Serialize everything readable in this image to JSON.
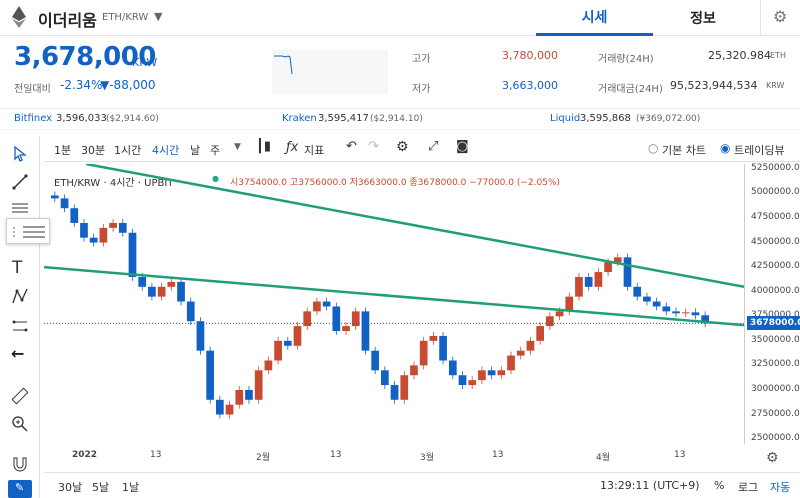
{
  "header": {
    "coin_name": "이더리움",
    "pair": "ETH/KRW",
    "tabs": [
      "시세",
      "정보"
    ]
  },
  "price": {
    "current": "3,678,000",
    "unit": "KRW",
    "change_label": "전일대비",
    "change_pct": "-2.34%",
    "change_abs": "▼-88,000",
    "high_label": "고가",
    "high": "3,780,000",
    "low_label": "저가",
    "low": "3,663,000",
    "volume_label": "거래량(24H)",
    "volume": "25,320.984",
    "volume_unit": "ETH",
    "amount_label": "거래대금(24H)",
    "amount": "95,523,944,534",
    "amount_unit": "KRW"
  },
  "exchanges": [
    {
      "name": "Bitfinex",
      "price": "3,596,033",
      "ref": "($2,914.60)"
    },
    {
      "name": "Kraken",
      "price": "3,595,417",
      "ref": "($2,914.10)"
    },
    {
      "name": "Liquid",
      "price": "3,595,868",
      "ref": "(¥369,072.00)"
    }
  ],
  "toolbar": {
    "intervals": [
      "1분",
      "30분",
      "1시간",
      "4시간",
      "날",
      "주"
    ],
    "indicator": "지표",
    "mode_basic": "기본 차트",
    "mode_tv": "트레이딩뷰"
  },
  "legend": {
    "symbol": "ETH/KRW · 4시간 · UPBIT",
    "ohlc": "시3754000.0 고3756000.0 저3663000.0 종3678000.0 −77000.0 (−2.05%)"
  },
  "chart_data": {
    "type": "candlestick",
    "last_price_label": "3678000.0",
    "y_ticks": [
      "5250000.0",
      "5000000.0",
      "4750000.0",
      "4500000.0",
      "4250000.0",
      "4000000.0",
      "3750000.0",
      "3500000.0",
      "3250000.0",
      "3000000.0",
      "2750000.0",
      "2500000.0"
    ],
    "ylim": [
      2450000,
      5300000
    ],
    "x_ticks": [
      "2022",
      "13",
      "2월",
      "13",
      "3월",
      "13",
      "4월",
      "13"
    ],
    "close": [
      4950000,
      4850000,
      4700000,
      4550000,
      4500000,
      4650000,
      4700000,
      4600000,
      4150000,
      4050000,
      3950000,
      4050000,
      4100000,
      3900000,
      3700000,
      3400000,
      2900000,
      2750000,
      2850000,
      3000000,
      2900000,
      3200000,
      3300000,
      3500000,
      3450000,
      3650000,
      3800000,
      3900000,
      3850000,
      3600000,
      3650000,
      3800000,
      3400000,
      3200000,
      3050000,
      2900000,
      3150000,
      3250000,
      3500000,
      3550000,
      3300000,
      3150000,
      3050000,
      3100000,
      3200000,
      3150000,
      3200000,
      3350000,
      3400000,
      3500000,
      3650000,
      3750000,
      3800000,
      3950000,
      4150000,
      4050000,
      4200000,
      4300000,
      4350000,
      4050000,
      3950000,
      3900000,
      3850000,
      3800000,
      3780000,
      3790000,
      3760000,
      3678000
    ],
    "trendlines": [
      {
        "from": [
          0.06,
          5300000
        ],
        "to": [
          1.0,
          4050000
        ]
      },
      {
        "from": [
          0.0,
          4250000
        ],
        "to": [
          1.0,
          3660000
        ]
      }
    ],
    "grid": false
  },
  "footer": {
    "ranges": [
      "30날",
      "5날",
      "1날"
    ],
    "time": "13:29:11 (UTC+9)",
    "pct": "%",
    "log": "로그",
    "auto": "자동"
  },
  "colors": {
    "up": "#c84a31",
    "down": "#1261c4",
    "trend": "#1f9e79"
  }
}
